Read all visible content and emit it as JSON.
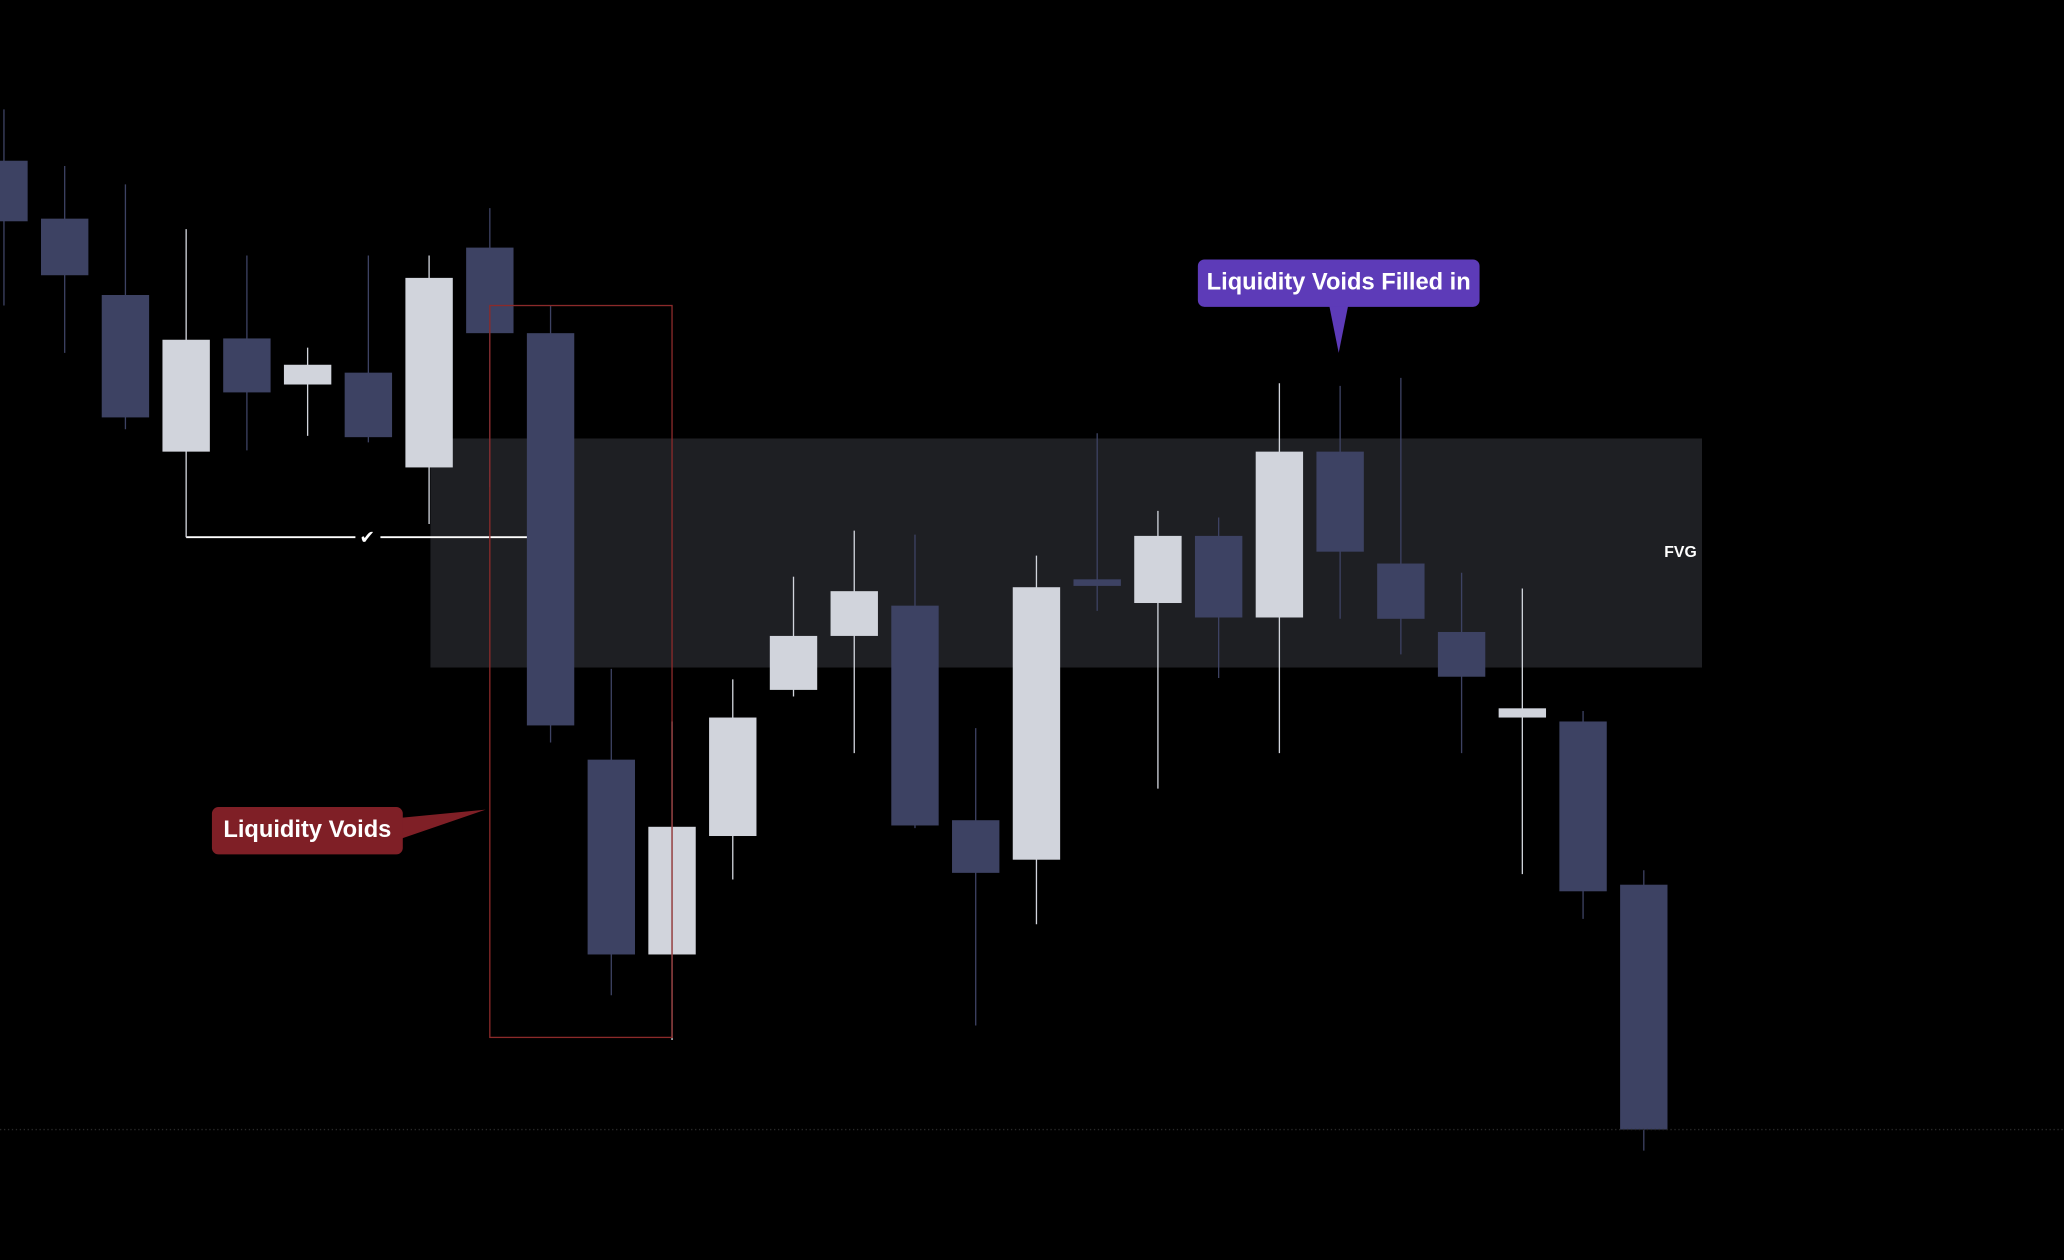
{
  "chart_data": {
    "type": "candlestick",
    "up_color": "#d1d4dc",
    "down_color": "#3d4263",
    "ylim": [
      0,
      95.7
    ],
    "open": [
      83.5,
      79.1,
      73.3,
      61.4,
      70,
      66.5,
      67.4,
      60.2,
      76.9,
      70.4,
      38,
      23.2,
      32.2,
      43.3,
      47.4,
      49.7,
      33.4,
      30.4,
      51.7,
      49.9,
      55,
      48.8,
      61.4,
      52.9,
      47.7,
      41.2,
      40.9,
      28.5
    ],
    "high": [
      87.4,
      83.1,
      81.7,
      78.3,
      76.3,
      69.3,
      76.3,
      76.3,
      79.9,
      72.5,
      44.9,
      40.9,
      44.1,
      51.9,
      55.4,
      55.1,
      40.4,
      53.5,
      62.8,
      56.9,
      56.4,
      66.6,
      66.4,
      67,
      52.2,
      51,
      41.7,
      29.6
    ],
    "low": [
      72.5,
      68.9,
      63.1,
      54.9,
      61.5,
      62.6,
      62.1,
      55.9,
      58.7,
      39.3,
      20.1,
      16.7,
      28.9,
      42.8,
      38.5,
      32.8,
      17.8,
      25.5,
      49.3,
      35.8,
      44.2,
      38.5,
      48.7,
      46,
      38.5,
      29.3,
      25.9,
      8.3
    ],
    "close": [
      78.9,
      74.8,
      64,
      69.9,
      65.9,
      68,
      62.5,
      74.6,
      70.4,
      40.6,
      23.2,
      32.9,
      41.2,
      47.4,
      50.8,
      33,
      29.4,
      51.1,
      51.2,
      55,
      48.8,
      61.4,
      53.8,
      48.7,
      44.3,
      41.9,
      28,
      9.9
    ],
    "fvg": {
      "label": "FVG",
      "top": 62.4,
      "bottom": 45
    },
    "voids_box": {
      "top": 72.5,
      "bottom": 16.9
    },
    "level_line": {
      "value": 54.9,
      "mark": "✔"
    },
    "callout_voids": "Liquidity Voids",
    "callout_filled": "Liquidity Voids Filled in"
  }
}
